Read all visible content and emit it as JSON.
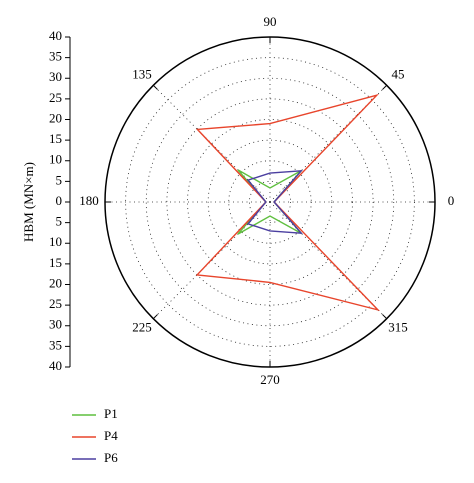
{
  "chart_data": {
    "type": "polar",
    "y_label": "HBM (MN×m)",
    "theta": [
      0,
      45,
      90,
      135,
      180,
      225,
      270,
      315
    ],
    "thetaticks": [
      0,
      45,
      90,
      135,
      180,
      225,
      270,
      315
    ],
    "rlim": [
      0,
      40
    ],
    "rticks": [
      0,
      5,
      10,
      15,
      20,
      25,
      30,
      35,
      40
    ],
    "grid": true,
    "closed": true,
    "legend": "bottom-left",
    "series": [
      {
        "name": "P1",
        "color": "#5fbf3f",
        "values": [
          1,
          10.8,
          3.4,
          11,
          1,
          11,
          3.4,
          10.8
        ]
      },
      {
        "name": "P4",
        "color": "#e8452c",
        "values": [
          1,
          36.6,
          19,
          24.9,
          1,
          25,
          19.5,
          37
        ]
      },
      {
        "name": "P6",
        "color": "#4b3fa0",
        "values": [
          1,
          10.7,
          7,
          7.5,
          1,
          7.5,
          7,
          10.7
        ]
      }
    ]
  }
}
